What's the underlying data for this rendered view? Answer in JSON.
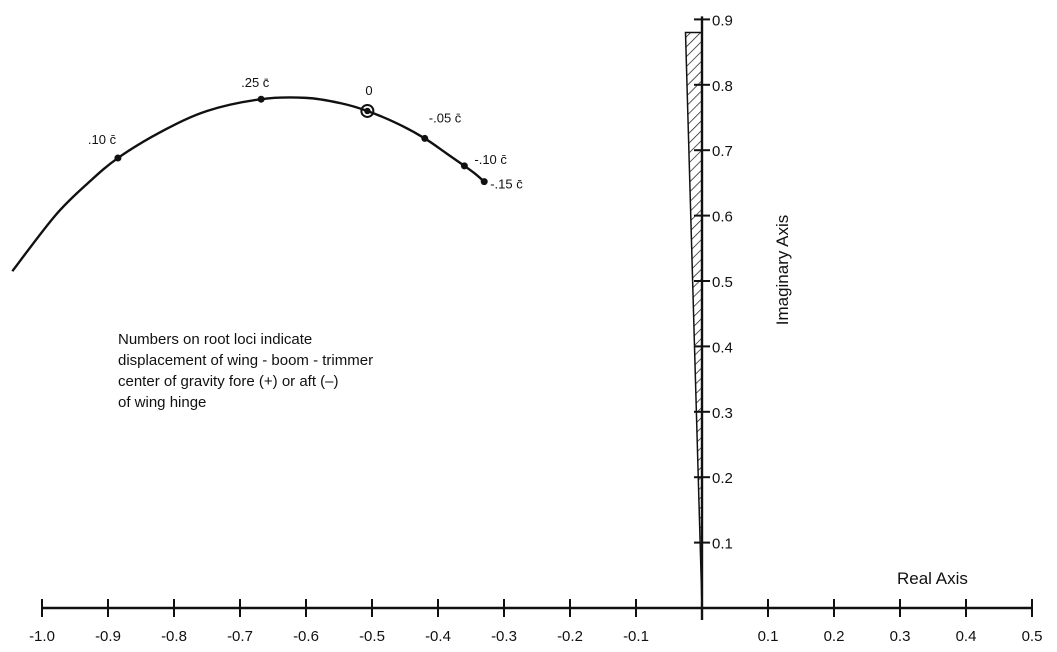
{
  "chart_data": {
    "type": "line",
    "title": "",
    "xlabel": "Real Axis",
    "ylabel": "Imaginary Axis",
    "xlim": [
      -1.0,
      0.5
    ],
    "ylim": [
      0,
      0.9
    ],
    "x_ticks": [
      -1.0,
      -0.9,
      -0.8,
      -0.7,
      -0.6,
      -0.5,
      -0.4,
      -0.3,
      -0.2,
      -0.1,
      0.1,
      0.2,
      0.3,
      0.4,
      0.5
    ],
    "x_tick_labels": [
      "-1.0",
      "-0.9",
      "-0.8",
      "-0.7",
      "-0.6",
      "-0.5",
      "-0.4",
      "-0.3",
      "-0.2",
      "-0.1",
      "0.1",
      "0.2",
      "0.3",
      "0.4",
      "0.5"
    ],
    "y_ticks": [
      0.1,
      0.2,
      0.3,
      0.4,
      0.5,
      0.6,
      0.7,
      0.8,
      0.9
    ],
    "y_tick_labels": [
      "0.1",
      "0.2",
      "0.3",
      "0.4",
      "0.5",
      "0.6",
      "0.7",
      "0.8",
      "0.9"
    ],
    "grid": false,
    "series": [
      {
        "x": [
          -1.045,
          -0.98,
          -0.93,
          -0.885,
          -0.82,
          -0.75,
          -0.668,
          -0.6,
          -0.548,
          -0.507,
          -0.46,
          -0.42,
          -0.387,
          -0.36,
          -0.345,
          -0.33
        ],
        "y": [
          0.515,
          0.6,
          0.65,
          0.688,
          0.728,
          0.76,
          0.778,
          0.78,
          0.772,
          0.76,
          0.74,
          0.718,
          0.695,
          0.676,
          0.665,
          0.652
        ]
      }
    ],
    "points": [
      {
        "x": -0.885,
        "y": 0.688,
        "label": ".10 c̄"
      },
      {
        "x": -0.668,
        "y": 0.778,
        "label": ".25 c̄"
      },
      {
        "x": -0.507,
        "y": 0.76,
        "label": "0"
      },
      {
        "x": -0.42,
        "y": 0.718,
        "label": "-.05 c̄"
      },
      {
        "x": -0.36,
        "y": 0.676,
        "label": "-.10 c̄"
      },
      {
        "x": -0.33,
        "y": 0.652,
        "label": "-.15 c̄"
      }
    ],
    "stability_boundary": {
      "x": [
        0,
        -0.025
      ],
      "y": [
        0,
        0.88
      ]
    },
    "annotation": [
      "Numbers on root loci indicate",
      "displacement of wing - boom - trimmer",
      "center of gravity fore (+) or aft (–)",
      "of wing hinge"
    ]
  }
}
